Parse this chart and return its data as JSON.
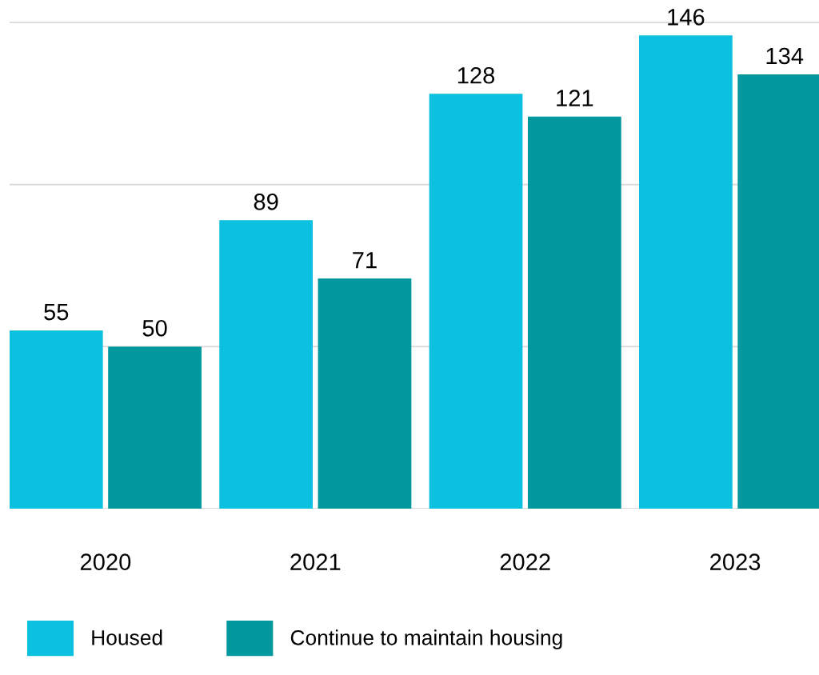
{
  "chart_data": {
    "type": "bar",
    "categories": [
      "2020",
      "2021",
      "2022",
      "2023"
    ],
    "series": [
      {
        "name": "Housed",
        "color": "#0cc0df",
        "values": [
          55,
          89,
          128,
          146
        ]
      },
      {
        "name": "Continue to maintain housing",
        "color": "#03989e",
        "values": [
          50,
          71,
          121,
          134
        ]
      }
    ],
    "ref_lines": [
      {
        "axis": "y",
        "value": 0,
        "color": "#d9d9d9"
      },
      {
        "axis": "y",
        "value": 50,
        "color": "#d9d9d9"
      },
      {
        "axis": "y",
        "value": 100,
        "color": "#d9d9d9"
      },
      {
        "axis": "y",
        "value": 150,
        "color": "#d9d9d9"
      }
    ],
    "tick_labels": "x",
    "data_labels": true,
    "legend": "bottom left"
  }
}
